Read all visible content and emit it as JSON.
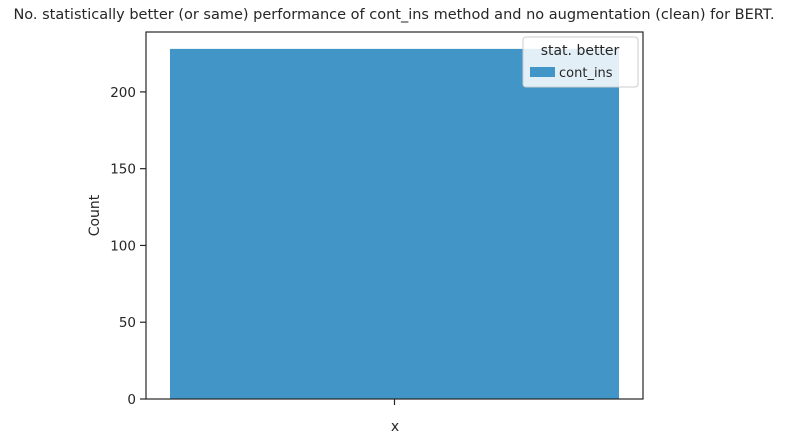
{
  "chart_data": {
    "type": "bar",
    "title": "No. statistically better (or same) performance of cont_ins method and no augmentation (clean) for BERT.",
    "xlabel": "x",
    "ylabel": "Count",
    "categories": [
      ""
    ],
    "series": [
      {
        "name": "cont_ins",
        "values": [
          228
        ],
        "color": "#4196c7"
      }
    ],
    "ylim": [
      0,
      239
    ],
    "yticks": [
      0,
      50,
      100,
      150,
      200
    ],
    "grid": false,
    "legend": {
      "title": "stat. better",
      "placement": "top-right"
    }
  }
}
